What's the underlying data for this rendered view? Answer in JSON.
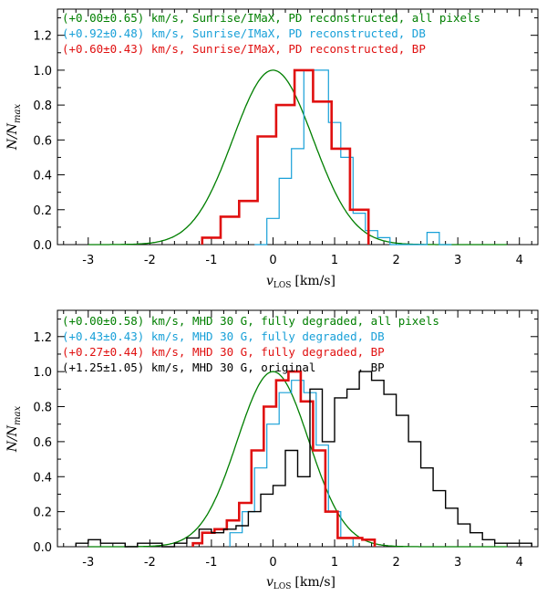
{
  "chart_data": [
    {
      "type": "line",
      "panel": "top",
      "xlabel": "v_LOS [km/s]",
      "xlabel_main": "v",
      "xlabel_sub": "LOS",
      "xlabel_unit": "[km/s]",
      "ylabel": "N/N_max",
      "ylabel_main": "N/N",
      "ylabel_sub": "max",
      "xlim": [
        -3.5,
        4.3
      ],
      "ylim": [
        0,
        1.35
      ],
      "xticks": [
        -3,
        -2,
        -1,
        0,
        1,
        2,
        3,
        4
      ],
      "xtick_labels": [
        "-3",
        "-2",
        "-1",
        "0",
        "1",
        "2",
        "3",
        "4"
      ],
      "yticks": [
        0.0,
        0.2,
        0.4,
        0.6,
        0.8,
        1.0,
        1.2
      ],
      "ytick_labels": [
        "0.0",
        "0.2",
        "0.4",
        "0.6",
        "0.8",
        "1.0",
        "1.2"
      ],
      "legend": [
        {
          "text": "(+0.00±0.65) km/s, Sunrise/IMaX, PD reconstructed, all pixels",
          "color": "#007f00"
        },
        {
          "text": "(+0.92±0.48) km/s, Sunrise/IMaX, PD reconstructed, DB",
          "color": "#18a0d8"
        },
        {
          "text": "(+0.60±0.43) km/s, Sunrise/IMaX, PD reconstructed, BP",
          "color": "#e01010"
        }
      ],
      "series": [
        {
          "name": "all pixels",
          "style": "gaussian",
          "color": "#007f00",
          "width": 1.3,
          "mean": 0.0,
          "sigma": 0.65
        },
        {
          "name": "DB",
          "style": "step",
          "color": "#18a0d8",
          "width": 1.2,
          "edges": [
            -0.3,
            -0.1,
            0.1,
            0.3,
            0.5,
            0.7,
            0.9,
            1.1,
            1.3,
            1.5,
            1.7,
            1.9,
            2.1,
            2.3,
            2.5,
            2.7,
            2.9
          ],
          "values": [
            0.0,
            0.15,
            0.38,
            0.55,
            1.0,
            1.0,
            0.7,
            0.5,
            0.18,
            0.08,
            0.04,
            0.0,
            0.0,
            0.0,
            0.07,
            0.0
          ]
        },
        {
          "name": "BP",
          "style": "step",
          "color": "#e01010",
          "width": 2.6,
          "edges": [
            -1.15,
            -0.85,
            -0.55,
            -0.25,
            0.05,
            0.35,
            0.65,
            0.95,
            1.25,
            1.55
          ],
          "values": [
            0.04,
            0.16,
            0.25,
            0.62,
            0.8,
            1.0,
            0.82,
            0.55,
            0.2
          ]
        }
      ]
    },
    {
      "type": "line",
      "panel": "bottom",
      "xlabel": "v_LOS [km/s]",
      "xlabel_main": "v",
      "xlabel_sub": "LOS",
      "xlabel_unit": "[km/s]",
      "ylabel": "N/N_max",
      "ylabel_main": "N/N",
      "ylabel_sub": "max",
      "xlim": [
        -3.5,
        4.3
      ],
      "ylim": [
        0,
        1.35
      ],
      "xticks": [
        -3,
        -2,
        -1,
        0,
        1,
        2,
        3,
        4
      ],
      "xtick_labels": [
        "-3",
        "-2",
        "-1",
        "0",
        "1",
        "2",
        "3",
        "4"
      ],
      "yticks": [
        0.0,
        0.2,
        0.4,
        0.6,
        0.8,
        1.0,
        1.2
      ],
      "ytick_labels": [
        "0.0",
        "0.2",
        "0.4",
        "0.6",
        "0.8",
        "1.0",
        "1.2"
      ],
      "legend": [
        {
          "text": "(+0.00±0.58) km/s, MHD 30 G, fully degraded, all pixels",
          "color": "#007f00"
        },
        {
          "text": "(+0.43±0.43) km/s, MHD 30 G, fully degraded, DB",
          "color": "#18a0d8"
        },
        {
          "text": "(+0.27±0.44) km/s, MHD 30 G, fully degraded, BP",
          "color": "#e01010"
        },
        {
          "text": "(+1.25±1.05) km/s, MHD 30 G, original      , BP",
          "color": "#000000"
        }
      ],
      "series": [
        {
          "name": "all pixels",
          "style": "gaussian",
          "color": "#007f00",
          "width": 1.3,
          "mean": 0.0,
          "sigma": 0.58
        },
        {
          "name": "DB",
          "style": "step",
          "color": "#18a0d8",
          "width": 1.2,
          "edges": [
            -0.7,
            -0.5,
            -0.3,
            -0.1,
            0.1,
            0.3,
            0.5,
            0.7,
            0.9,
            1.1,
            1.3
          ],
          "values": [
            0.08,
            0.2,
            0.45,
            0.7,
            0.88,
            0.95,
            0.88,
            0.58,
            0.2,
            0.05
          ]
        },
        {
          "name": "BP",
          "style": "step",
          "color": "#e01010",
          "width": 2.6,
          "edges": [
            -1.3,
            -1.15,
            -0.95,
            -0.75,
            -0.55,
            -0.35,
            -0.15,
            0.05,
            0.25,
            0.45,
            0.65,
            0.85,
            1.05,
            1.25,
            1.45,
            1.65
          ],
          "values": [
            0.02,
            0.08,
            0.1,
            0.15,
            0.25,
            0.55,
            0.8,
            0.95,
            1.0,
            0.83,
            0.55,
            0.2,
            0.05,
            0.05,
            0.04
          ]
        },
        {
          "name": "BP original",
          "style": "step",
          "color": "#000000",
          "width": 1.4,
          "edges": [
            -3.2,
            -3.0,
            -2.8,
            -2.6,
            -2.4,
            -2.2,
            -2.0,
            -1.8,
            -1.6,
            -1.4,
            -1.2,
            -1.0,
            -0.8,
            -0.6,
            -0.4,
            -0.2,
            0.0,
            0.2,
            0.4,
            0.6,
            0.8,
            1.0,
            1.2,
            1.4,
            1.6,
            1.8,
            2.0,
            2.2,
            2.4,
            2.6,
            2.8,
            3.0,
            3.2,
            3.4,
            3.6,
            3.8,
            4.0,
            4.2
          ],
          "values": [
            0.02,
            0.04,
            0.02,
            0.02,
            0.0,
            0.02,
            0.02,
            0.0,
            0.02,
            0.05,
            0.1,
            0.08,
            0.1,
            0.12,
            0.2,
            0.3,
            0.35,
            0.55,
            0.4,
            0.9,
            0.6,
            0.85,
            0.9,
            1.0,
            0.95,
            0.87,
            0.75,
            0.6,
            0.45,
            0.32,
            0.22,
            0.13,
            0.08,
            0.04,
            0.02,
            0.02,
            0.02
          ]
        }
      ]
    }
  ]
}
